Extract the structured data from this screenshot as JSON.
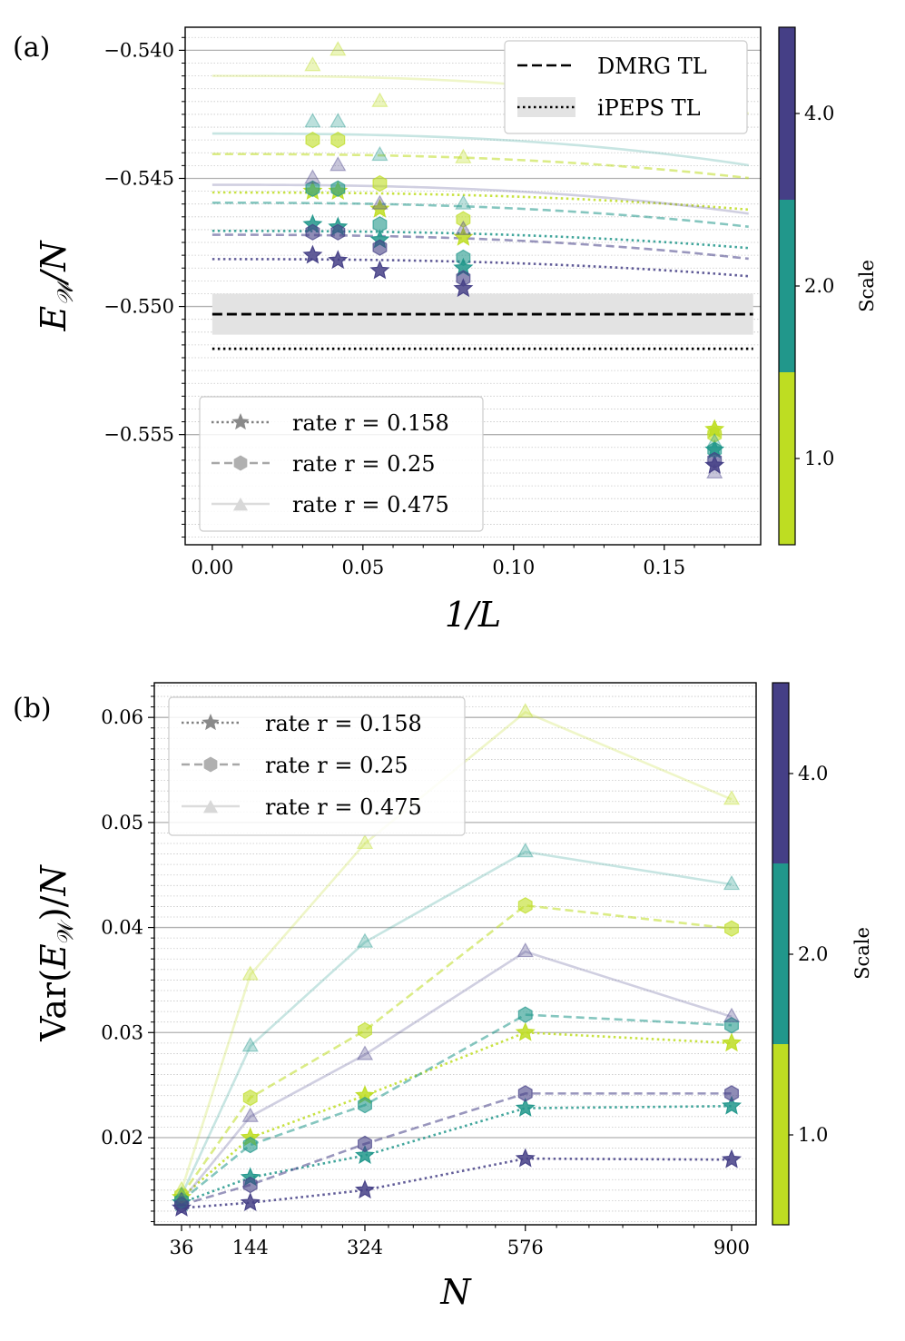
{
  "colors": {
    "scale_1": "#bedd22",
    "scale_2": "#21978b",
    "scale_4": "#453f86",
    "grid_major": "#b0b0b0",
    "grid_minor": "#c8c8c8",
    "band": "#e3e3e3"
  },
  "colorbar": {
    "label": "Scale",
    "ticks": [
      "1.0",
      "2.0",
      "4.0"
    ]
  },
  "chart_data": [
    {
      "panel": "(a)",
      "type": "scatter",
      "xlabel": "1/L",
      "ylabel": "E_W/N",
      "xlim": [
        -0.009,
        0.182
      ],
      "ylim": [
        -0.5593,
        -0.5391
      ],
      "xticks": [
        "0.00",
        "0.05",
        "0.10",
        "0.15"
      ],
      "yticks": [
        "−0.540",
        "−0.545",
        "−0.550",
        "−0.555"
      ],
      "reference_lines": [
        {
          "name": "DMRG TL",
          "y": -0.5503,
          "style": "dashed",
          "band": [
            -0.5511,
            -0.5495
          ]
        },
        {
          "name": "iPEPS TL",
          "y": -0.55165,
          "style": "dotted"
        }
      ],
      "legend_rates": [
        "rate r = 0.158",
        "rate r = 0.25",
        "rate r = 0.475"
      ],
      "series": [
        {
          "rate": 0.158,
          "scale": 1.0,
          "marker": "star",
          "x": [
            0.0333,
            0.0417,
            0.0556,
            0.0833,
            0.1667
          ],
          "y": [
            -0.5455,
            -0.5455,
            -0.5462,
            -0.5473,
            -0.5548
          ],
          "fit": {
            "inf": -0.54555,
            "a": -0.05,
            "p": 2.5
          }
        },
        {
          "rate": 0.158,
          "scale": 2.0,
          "marker": "star",
          "x": [
            0.0333,
            0.0417,
            0.0556,
            0.0833,
            0.1667
          ],
          "y": [
            -0.5468,
            -0.5469,
            -0.5474,
            -0.5485,
            -0.5556
          ],
          "fit": {
            "inf": -0.54705,
            "a": -0.05,
            "p": 2.5
          }
        },
        {
          "rate": 0.158,
          "scale": 4.0,
          "marker": "star",
          "x": [
            0.0333,
            0.0417,
            0.0556,
            0.0833,
            0.1667
          ],
          "y": [
            -0.548,
            -0.5482,
            -0.5486,
            -0.5493,
            -0.5562
          ],
          "fit": {
            "inf": -0.54815,
            "a": -0.05,
            "p": 2.5
          }
        },
        {
          "rate": 0.25,
          "scale": 1.0,
          "marker": "hexagon",
          "x": [
            0.0333,
            0.0417,
            0.0556,
            0.0833,
            0.1667
          ],
          "y": [
            -0.5435,
            -0.5435,
            -0.5452,
            -0.5466,
            -0.555
          ],
          "fit": {
            "inf": -0.54405,
            "a": -0.07,
            "p": 2.5
          }
        },
        {
          "rate": 0.25,
          "scale": 2.0,
          "marker": "hexagon",
          "x": [
            0.0333,
            0.0417,
            0.0556,
            0.0833,
            0.1667
          ],
          "y": [
            -0.5454,
            -0.5454,
            -0.5468,
            -0.5481,
            -0.5556
          ],
          "fit": {
            "inf": -0.54595,
            "a": -0.07,
            "p": 2.5
          }
        },
        {
          "rate": 0.25,
          "scale": 4.0,
          "marker": "hexagon",
          "x": [
            0.0333,
            0.0417,
            0.0556,
            0.0833,
            0.1667
          ],
          "y": [
            -0.5471,
            -0.5471,
            -0.5477,
            -0.5489,
            -0.556
          ],
          "fit": {
            "inf": -0.5472,
            "a": -0.07,
            "p": 2.5
          }
        },
        {
          "rate": 0.475,
          "scale": 1.0,
          "marker": "triangle",
          "x": [
            0.0333,
            0.0417,
            0.0556,
            0.0833,
            0.1667
          ],
          "y": [
            -0.5406,
            -0.54,
            -0.542,
            -0.5442,
            -0.5548
          ],
          "fit": {
            "inf": -0.541,
            "a": -0.13,
            "p": 2.6
          }
        },
        {
          "rate": 0.475,
          "scale": 2.0,
          "marker": "triangle",
          "x": [
            0.0333,
            0.0417,
            0.0556,
            0.0833,
            0.1667
          ],
          "y": [
            -0.5428,
            -0.5428,
            -0.5441,
            -0.546,
            -0.5553
          ],
          "fit": {
            "inf": -0.54325,
            "a": -0.11,
            "p": 2.6
          }
        },
        {
          "rate": 0.475,
          "scale": 4.0,
          "marker": "triangle",
          "x": [
            0.0333,
            0.0417,
            0.0556,
            0.0833,
            0.1667
          ],
          "y": [
            -0.545,
            -0.5445,
            -0.546,
            -0.547,
            -0.5565
          ],
          "fit": {
            "inf": -0.54525,
            "a": -0.1,
            "p": 2.6
          }
        }
      ]
    },
    {
      "panel": "(b)",
      "type": "line",
      "xlabel": "N",
      "ylabel": "Var(E_W)/N",
      "xlim": [
        0,
        920
      ],
      "ylim": [
        0.0117,
        0.0633
      ],
      "xticks": [
        "36",
        "144",
        "324",
        "576",
        "900"
      ],
      "yticks": [
        "0.06",
        "0.05",
        "0.04",
        "0.03",
        "0.02"
      ],
      "x": [
        36,
        144,
        324,
        576,
        900
      ],
      "legend_rates": [
        "rate r = 0.158",
        "rate r = 0.25",
        "rate r = 0.475"
      ],
      "series": [
        {
          "rate": 0.158,
          "scale": 1.0,
          "marker": "star",
          "values": [
            0.0143,
            0.02,
            0.024,
            0.03,
            0.029
          ]
        },
        {
          "rate": 0.158,
          "scale": 2.0,
          "marker": "star",
          "values": [
            0.0138,
            0.0162,
            0.0183,
            0.0228,
            0.023
          ]
        },
        {
          "rate": 0.158,
          "scale": 4.0,
          "marker": "star",
          "values": [
            0.0133,
            0.0138,
            0.015,
            0.018,
            0.0179
          ]
        },
        {
          "rate": 0.25,
          "scale": 1.0,
          "marker": "hexagon",
          "values": [
            0.0145,
            0.0238,
            0.0302,
            0.0421,
            0.0399
          ]
        },
        {
          "rate": 0.25,
          "scale": 2.0,
          "marker": "hexagon",
          "values": [
            0.014,
            0.0193,
            0.0231,
            0.0317,
            0.0307
          ]
        },
        {
          "rate": 0.25,
          "scale": 4.0,
          "marker": "hexagon",
          "values": [
            0.0136,
            0.0155,
            0.0194,
            0.0242,
            0.0242
          ]
        },
        {
          "rate": 0.475,
          "scale": 1.0,
          "marker": "triangle",
          "values": [
            0.015,
            0.0355,
            0.048,
            0.0605,
            0.0522
          ]
        },
        {
          "rate": 0.475,
          "scale": 2.0,
          "marker": "triangle",
          "values": [
            0.0145,
            0.0287,
            0.0386,
            0.0472,
            0.0441
          ]
        },
        {
          "rate": 0.475,
          "scale": 4.0,
          "marker": "triangle",
          "values": [
            0.014,
            0.022,
            0.0279,
            0.0377,
            0.0315
          ]
        }
      ]
    }
  ]
}
